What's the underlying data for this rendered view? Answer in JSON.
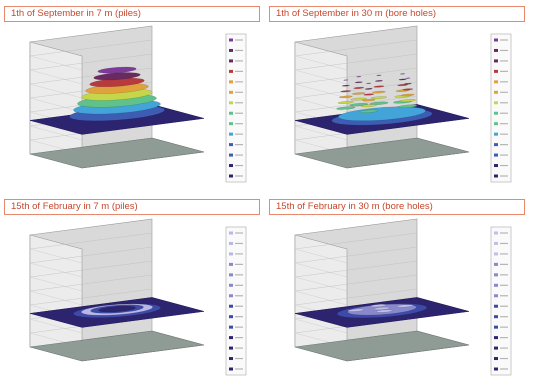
{
  "chart_data": [
    {
      "type": "surface3d",
      "title": "1th of September in 7 m (piles)",
      "shape": "plateau",
      "colors": [
        "#2d2470",
        "#3d5cb4",
        "#42a4d8",
        "#5fc28a",
        "#c6d64a",
        "#e0a23c",
        "#b63a3e",
        "#6a2a60",
        "#7e3a9a"
      ]
    },
    {
      "type": "surface3d",
      "title": "1th of September in 30 m (bore holes)",
      "shape": "peaks",
      "colors": [
        "#2d2470",
        "#3d5cb4",
        "#42a4d8",
        "#5fc28a",
        "#c6d64a",
        "#e0a23c",
        "#b63a3e",
        "#6a2a60",
        "#7e3a9a"
      ]
    },
    {
      "type": "surface3d",
      "title": "15th of February in 7 m (piles)",
      "shape": "ring",
      "colors": [
        "#2d2470",
        "#3d4aa8",
        "#8a88cc",
        "#b9b7e4"
      ]
    },
    {
      "type": "surface3d",
      "title": "15th of February in 30 m (bore holes)",
      "shape": "ring-dots",
      "colors": [
        "#2d2470",
        "#3d4aa8",
        "#8a88cc",
        "#c0bfe8"
      ]
    }
  ]
}
